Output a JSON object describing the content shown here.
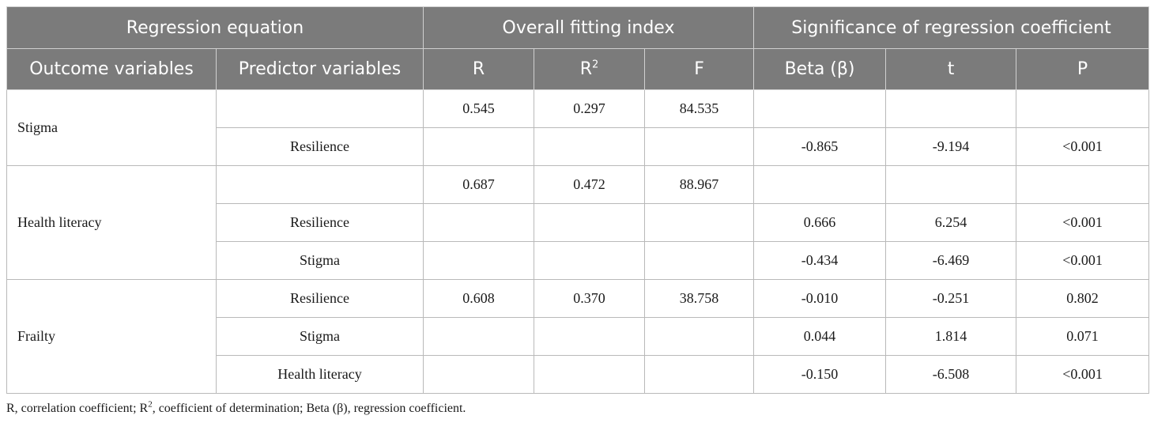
{
  "header": {
    "group_regression": "Regression equation",
    "group_fit": "Overall fitting index",
    "group_sig": "Significance of regression coefficient",
    "col_outcome": "Outcome variables",
    "col_predictor": "Predictor variables",
    "col_r": "R",
    "col_r2_base": "R",
    "col_r2_sup": "2",
    "col_f": "F",
    "col_beta": "Beta (β)",
    "col_t": "t",
    "col_p": "P"
  },
  "rows": [
    {
      "outcome": "Stigma",
      "predictor": "",
      "r": "0.545",
      "r2": "0.297",
      "f": "84.535",
      "beta": "",
      "t": "",
      "p": ""
    },
    {
      "outcome": "",
      "predictor": "Resilience",
      "r": "",
      "r2": "",
      "f": "",
      "beta": "-0.865",
      "t": "-9.194",
      "p": "<0.001"
    },
    {
      "outcome": "Health literacy",
      "predictor": "",
      "r": "0.687",
      "r2": "0.472",
      "f": "88.967",
      "beta": "",
      "t": "",
      "p": ""
    },
    {
      "outcome": "",
      "predictor": "Resilience",
      "r": "",
      "r2": "",
      "f": "",
      "beta": "0.666",
      "t": "6.254",
      "p": "<0.001"
    },
    {
      "outcome": "",
      "predictor": "Stigma",
      "r": "",
      "r2": "",
      "f": "",
      "beta": "-0.434",
      "t": "-6.469",
      "p": "<0.001"
    },
    {
      "outcome": "Frailty",
      "predictor": "Resilience",
      "r": "0.608",
      "r2": "0.370",
      "f": "38.758",
      "beta": "-0.010",
      "t": "-0.251",
      "p": "0.802"
    },
    {
      "outcome": "",
      "predictor": "Stigma",
      "r": "",
      "r2": "",
      "f": "",
      "beta": "0.044",
      "t": "1.814",
      "p": "0.071"
    },
    {
      "outcome": "",
      "predictor": "Health literacy",
      "r": "",
      "r2": "",
      "f": "",
      "beta": "-0.150",
      "t": "-6.508",
      "p": "<0.001"
    }
  ],
  "footnote": {
    "part1": "R, correlation coefficient; R",
    "sup": "2",
    "part2": ", coefficient of determination; Beta (β), regression coefficient."
  }
}
